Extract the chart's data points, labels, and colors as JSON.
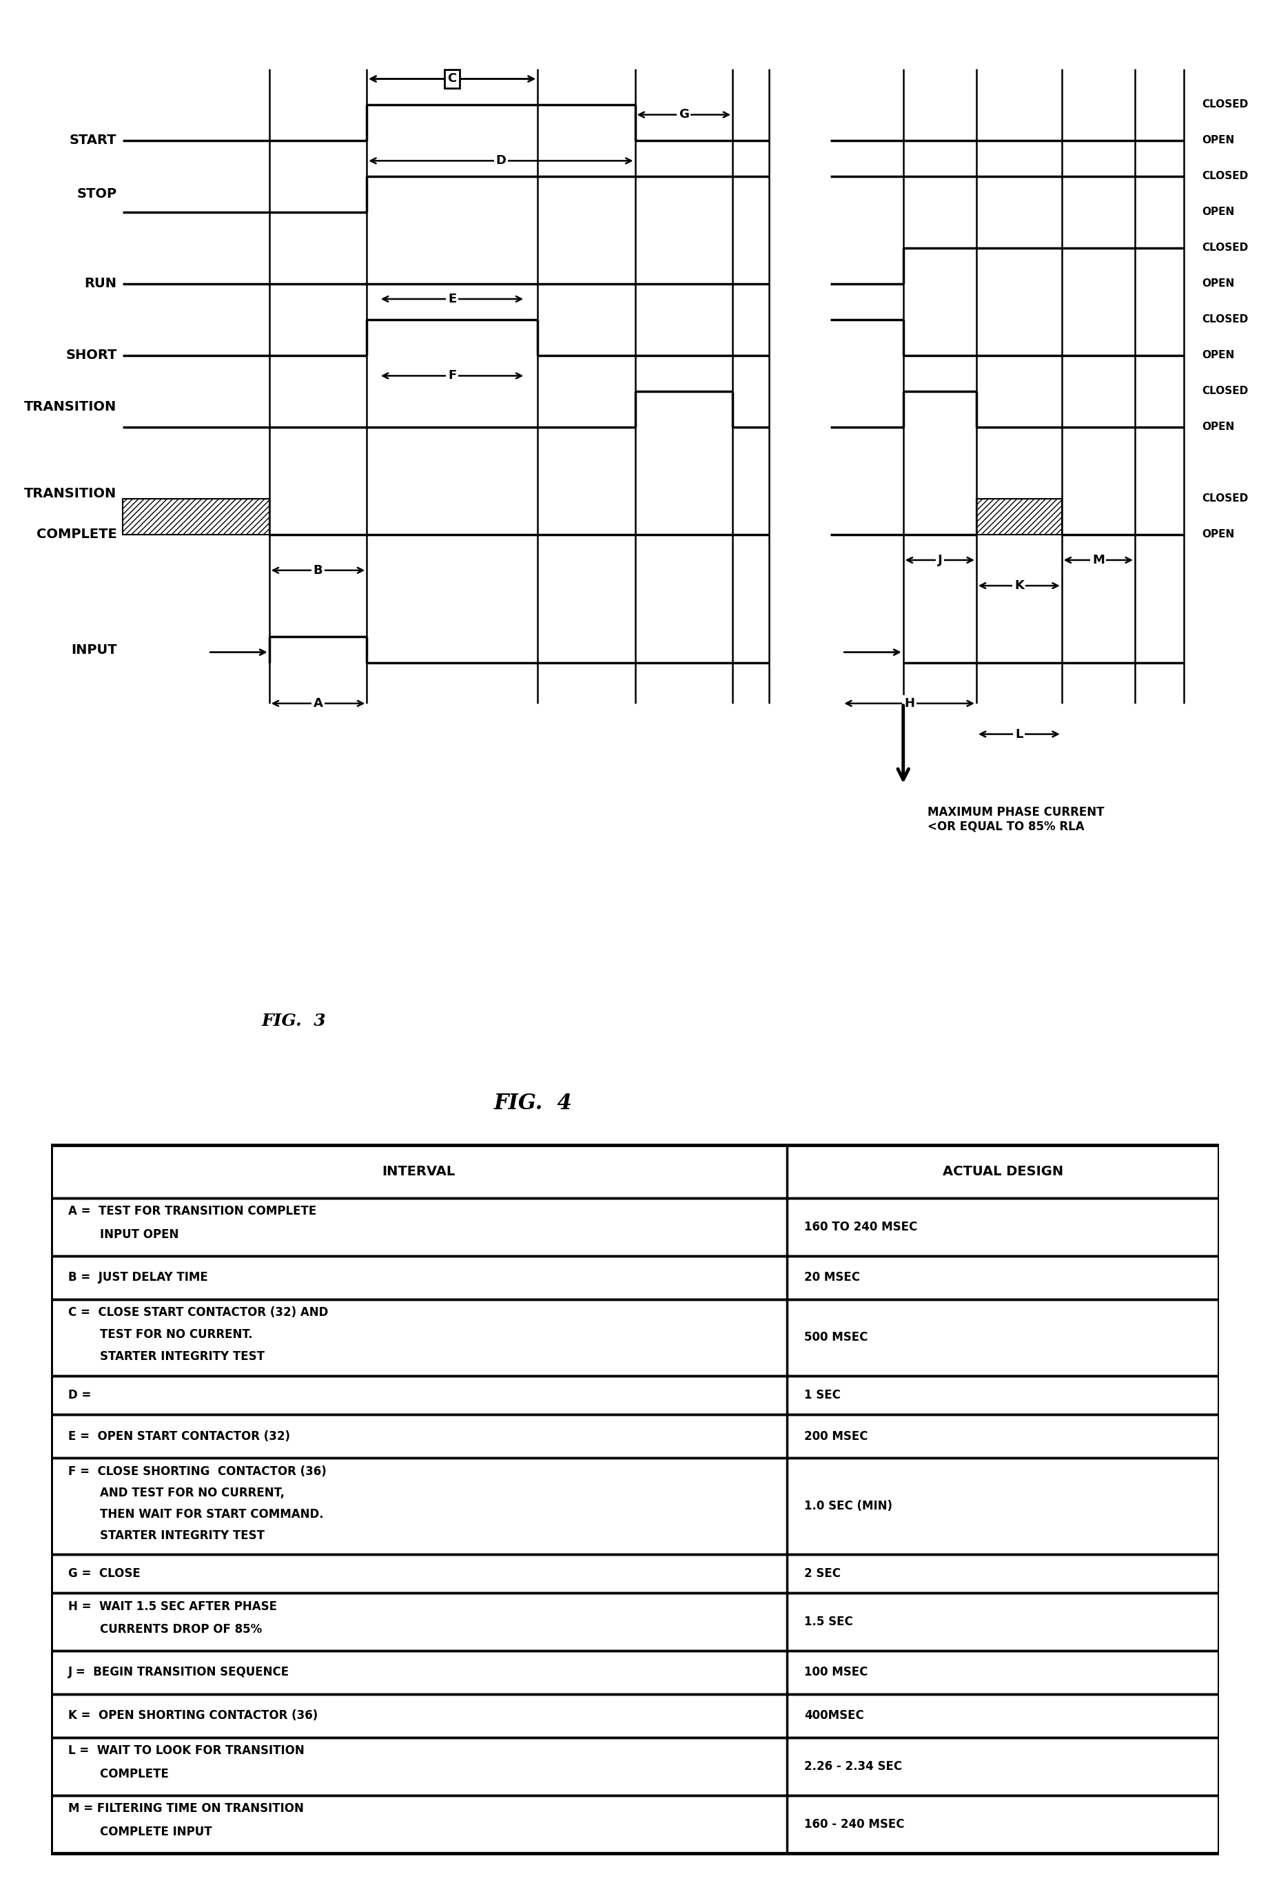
{
  "fig_width": 18.43,
  "fig_height": 27.52,
  "background_color": "#ffffff",
  "fig3_caption": "FIG.  3",
  "fig4_caption": "FIG.  4",
  "table_headers": [
    "INTERVAL",
    "ACTUAL DESIGN"
  ],
  "table_rows": [
    [
      "A =  TEST FOR TRANSITION COMPLETE\n        INPUT OPEN",
      "160 TO 240 MSEC"
    ],
    [
      "B =  JUST DELAY TIME",
      "20 MSEC"
    ],
    [
      "C =  CLOSE START CONTACTOR (32) AND\n        TEST FOR NO CURRENT.\n        STARTER INTEGRITY TEST",
      "500 MSEC"
    ],
    [
      "D =",
      "1 SEC"
    ],
    [
      "E =  OPEN START CONTACTOR (32)",
      "200 MSEC"
    ],
    [
      "F =  CLOSE SHORTING  CONTACTOR (36)\n        AND TEST FOR NO CURRENT,\n        THEN WAIT FOR START COMMAND.\n        STARTER INTEGRITY TEST",
      "1.0 SEC (MIN)"
    ],
    [
      "G =  CLOSE",
      "2 SEC"
    ],
    [
      "H =  WAIT 1.5 SEC AFTER PHASE\n        CURRENTS DROP OF 85%",
      "1.5 SEC"
    ],
    [
      "J =  BEGIN TRANSITION SEQUENCE",
      "100 MSEC"
    ],
    [
      "K =  OPEN SHORTING CONTACTOR (36)",
      "400MSEC"
    ],
    [
      "L =  WAIT TO LOOK FOR TRANSITION\n        COMPLETE",
      "2.26 - 2.34 SEC"
    ],
    [
      "M = FILTERING TIME ON TRANSITION\n        COMPLETE INPUT",
      "160 - 240 MSEC"
    ]
  ],
  "lw_signal": 2.5,
  "lw_grid": 1.8,
  "font_size_label": 14,
  "font_size_state": 11,
  "font_size_interval": 13,
  "font_size_fig": 18,
  "font_size_table_header": 14,
  "font_size_table_body": 12
}
